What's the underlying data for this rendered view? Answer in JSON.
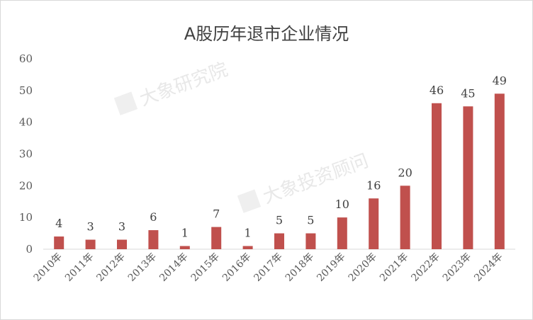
{
  "chart_data": {
    "type": "bar",
    "title": "A股历年退市企业情况",
    "categories": [
      "2010年",
      "2011年",
      "2012年",
      "2013年",
      "2014年",
      "2015年",
      "2016年",
      "2017年",
      "2018年",
      "2019年",
      "2020年",
      "2021年",
      "2022年",
      "2023年",
      "2024年"
    ],
    "values": [
      4,
      3,
      3,
      6,
      1,
      7,
      1,
      5,
      5,
      10,
      16,
      20,
      46,
      45,
      49
    ],
    "xlabel": "",
    "ylabel": "",
    "ylim": [
      0,
      60
    ],
    "yticks": [
      0,
      10,
      20,
      30,
      40,
      50,
      60
    ],
    "grid": false,
    "legend": "none",
    "bar_color": "#c0504d"
  },
  "watermarks": [
    "大象研究院",
    "大象投资顾问"
  ]
}
